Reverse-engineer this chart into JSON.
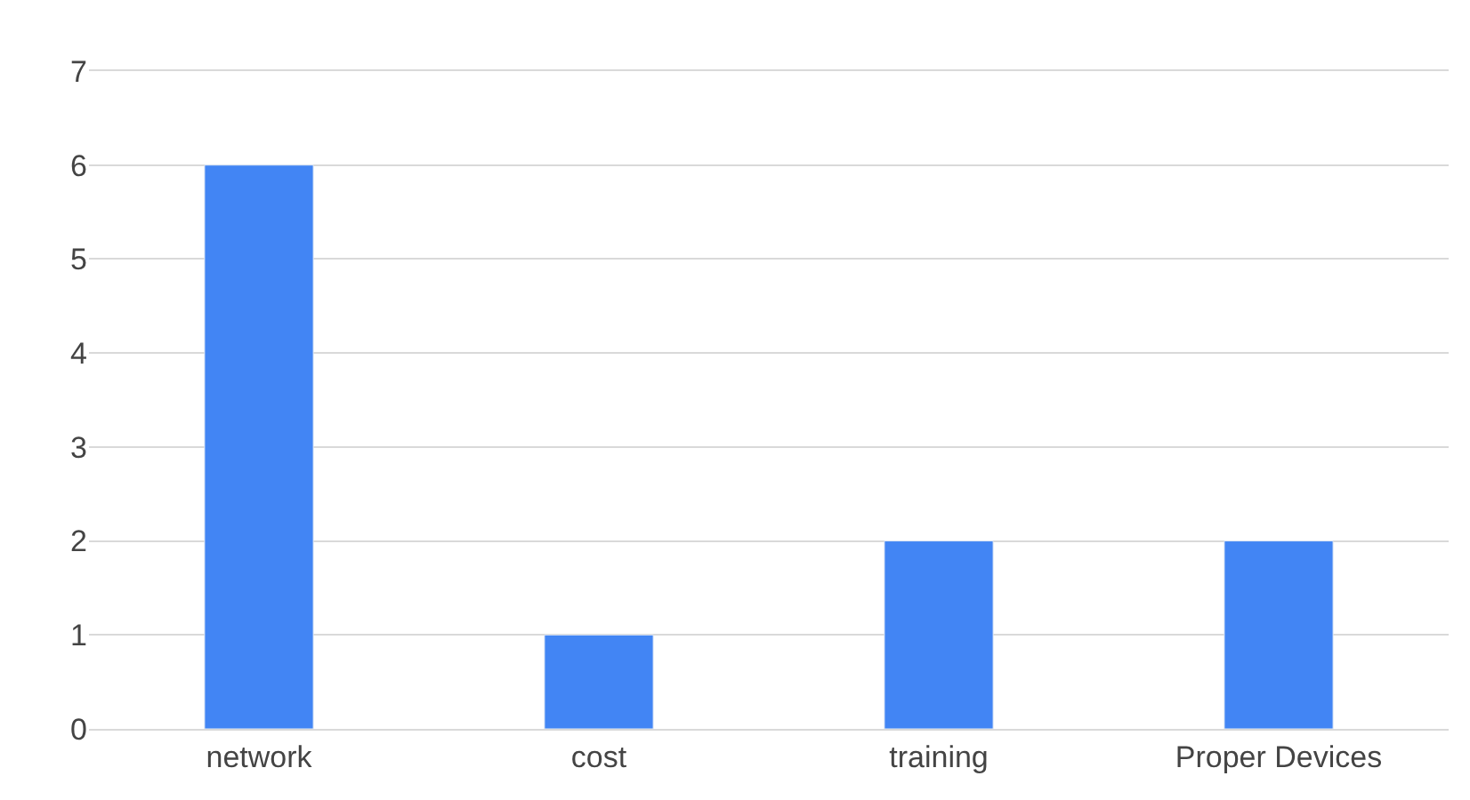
{
  "chart_data": {
    "type": "bar",
    "categories": [
      "network",
      "cost",
      "training",
      "Proper Devices"
    ],
    "values": [
      6,
      1,
      2,
      2
    ],
    "color": "#4285f4",
    "ylim": [
      0,
      7
    ],
    "yticks": [
      0,
      1,
      2,
      3,
      4,
      5,
      6,
      7
    ],
    "grid": "y"
  }
}
